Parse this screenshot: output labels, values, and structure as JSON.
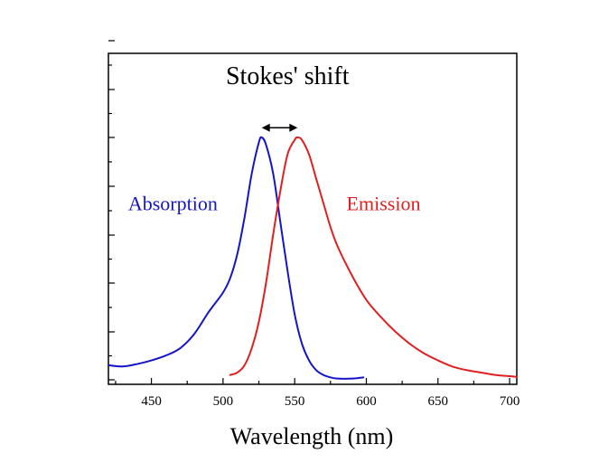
{
  "chart_data": {
    "type": "line",
    "title": "",
    "xlabel": "Wavelength (nm)",
    "ylabel": "",
    "xlim": [
      420,
      705
    ],
    "ylim": [
      0,
      1.05
    ],
    "x_ticks": [
      450,
      500,
      550,
      600,
      650,
      700
    ],
    "grid": false,
    "legend": "none",
    "series": [
      {
        "name": "Absorption",
        "color": "#1515c8",
        "x": [
          420,
          430,
          440,
          450,
          460,
          470,
          480,
          490,
          500,
          505,
          510,
          515,
          520,
          525,
          527,
          530,
          535,
          540,
          545,
          550,
          555,
          560,
          565,
          570,
          575,
          580,
          590,
          598
        ],
        "y": [
          0.06,
          0.055,
          0.065,
          0.08,
          0.1,
          0.13,
          0.19,
          0.28,
          0.36,
          0.42,
          0.52,
          0.67,
          0.85,
          0.98,
          1.0,
          0.97,
          0.85,
          0.65,
          0.45,
          0.27,
          0.15,
          0.08,
          0.04,
          0.02,
          0.01,
          0.005,
          0.005,
          0.01
        ]
      },
      {
        "name": "Emission",
        "color": "#e02020",
        "x": [
          505,
          510,
          515,
          520,
          525,
          530,
          535,
          540,
          545,
          550,
          552,
          555,
          560,
          565,
          570,
          575,
          580,
          590,
          600,
          610,
          620,
          630,
          640,
          650,
          660,
          670,
          680,
          690,
          700,
          705
        ],
        "y": [
          0.02,
          0.03,
          0.06,
          0.13,
          0.24,
          0.4,
          0.6,
          0.78,
          0.93,
          0.99,
          1.0,
          0.99,
          0.93,
          0.83,
          0.73,
          0.63,
          0.55,
          0.43,
          0.33,
          0.26,
          0.2,
          0.15,
          0.11,
          0.08,
          0.055,
          0.04,
          0.03,
          0.02,
          0.015,
          0.012
        ]
      }
    ],
    "annotations": [
      {
        "text": "Stokes' shift",
        "x": 545,
        "y": 1.22,
        "color": "#000000"
      },
      {
        "text": "Absorption",
        "x": 465,
        "y": 0.7,
        "color": "#1515c8"
      },
      {
        "text": "Emission",
        "x": 612,
        "y": 0.7,
        "color": "#e02020"
      }
    ],
    "arrow": {
      "x_from": 527,
      "x_to": 552,
      "y": 1.04,
      "color": "#000000"
    }
  }
}
